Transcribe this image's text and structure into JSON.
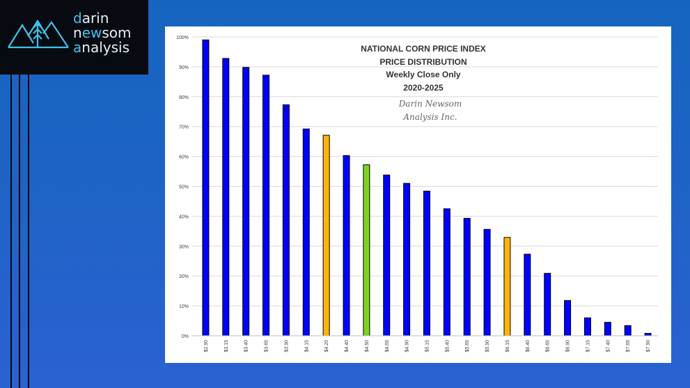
{
  "logo": {
    "line1_accent": "d",
    "line1_rest": "arin",
    "line2_a": "n",
    "line2_accent": "ew",
    "line2_rest": "som",
    "line3_accent": "a",
    "line3_rest": "nalysis"
  },
  "colors": {
    "background": "#1e63c4",
    "bar_default": "#0000ff",
    "bar_orange": "#ffb30f",
    "bar_green": "#7ed321"
  },
  "chart_data": {
    "type": "bar",
    "title_lines": [
      "NATIONAL CORN PRICE INDEX",
      "PRICE DISTRIBUTION",
      "Weekly Close Only",
      "2020-2025"
    ],
    "watermark_lines": [
      "Darin Newsom",
      "Analysis Inc."
    ],
    "categories": [
      "$2.90",
      "$3.15",
      "$3.40",
      "$3.65",
      "$3.90",
      "$4.15",
      "$4.20",
      "$4.40",
      "$4.50",
      "$4.65",
      "$4.90",
      "$5.15",
      "$5.40",
      "$5.65",
      "$5.90",
      "$6.15",
      "$6.40",
      "$6.65",
      "$6.90",
      "$7.15",
      "$7.40",
      "$7.65",
      "$7.90"
    ],
    "values": [
      99,
      92.8,
      89.8,
      87.2,
      77.3,
      69.2,
      67.1,
      60.3,
      57.2,
      53.8,
      51,
      48.4,
      42.5,
      39.3,
      35.6,
      32.9,
      27.3,
      20.9,
      11.8,
      6,
      4.5,
      3.4,
      0.8
    ],
    "bar_colors": [
      "blue",
      "blue",
      "blue",
      "blue",
      "blue",
      "blue",
      "orange",
      "blue",
      "green",
      "blue",
      "blue",
      "blue",
      "blue",
      "blue",
      "blue",
      "orange",
      "blue",
      "blue",
      "blue",
      "blue",
      "blue",
      "blue",
      "blue"
    ],
    "ylim": [
      0,
      100
    ],
    "yticks": [
      "0%",
      "10%",
      "20%",
      "30%",
      "40%",
      "50%",
      "60%",
      "70%",
      "80%",
      "90%",
      "100%"
    ],
    "grid": true
  }
}
